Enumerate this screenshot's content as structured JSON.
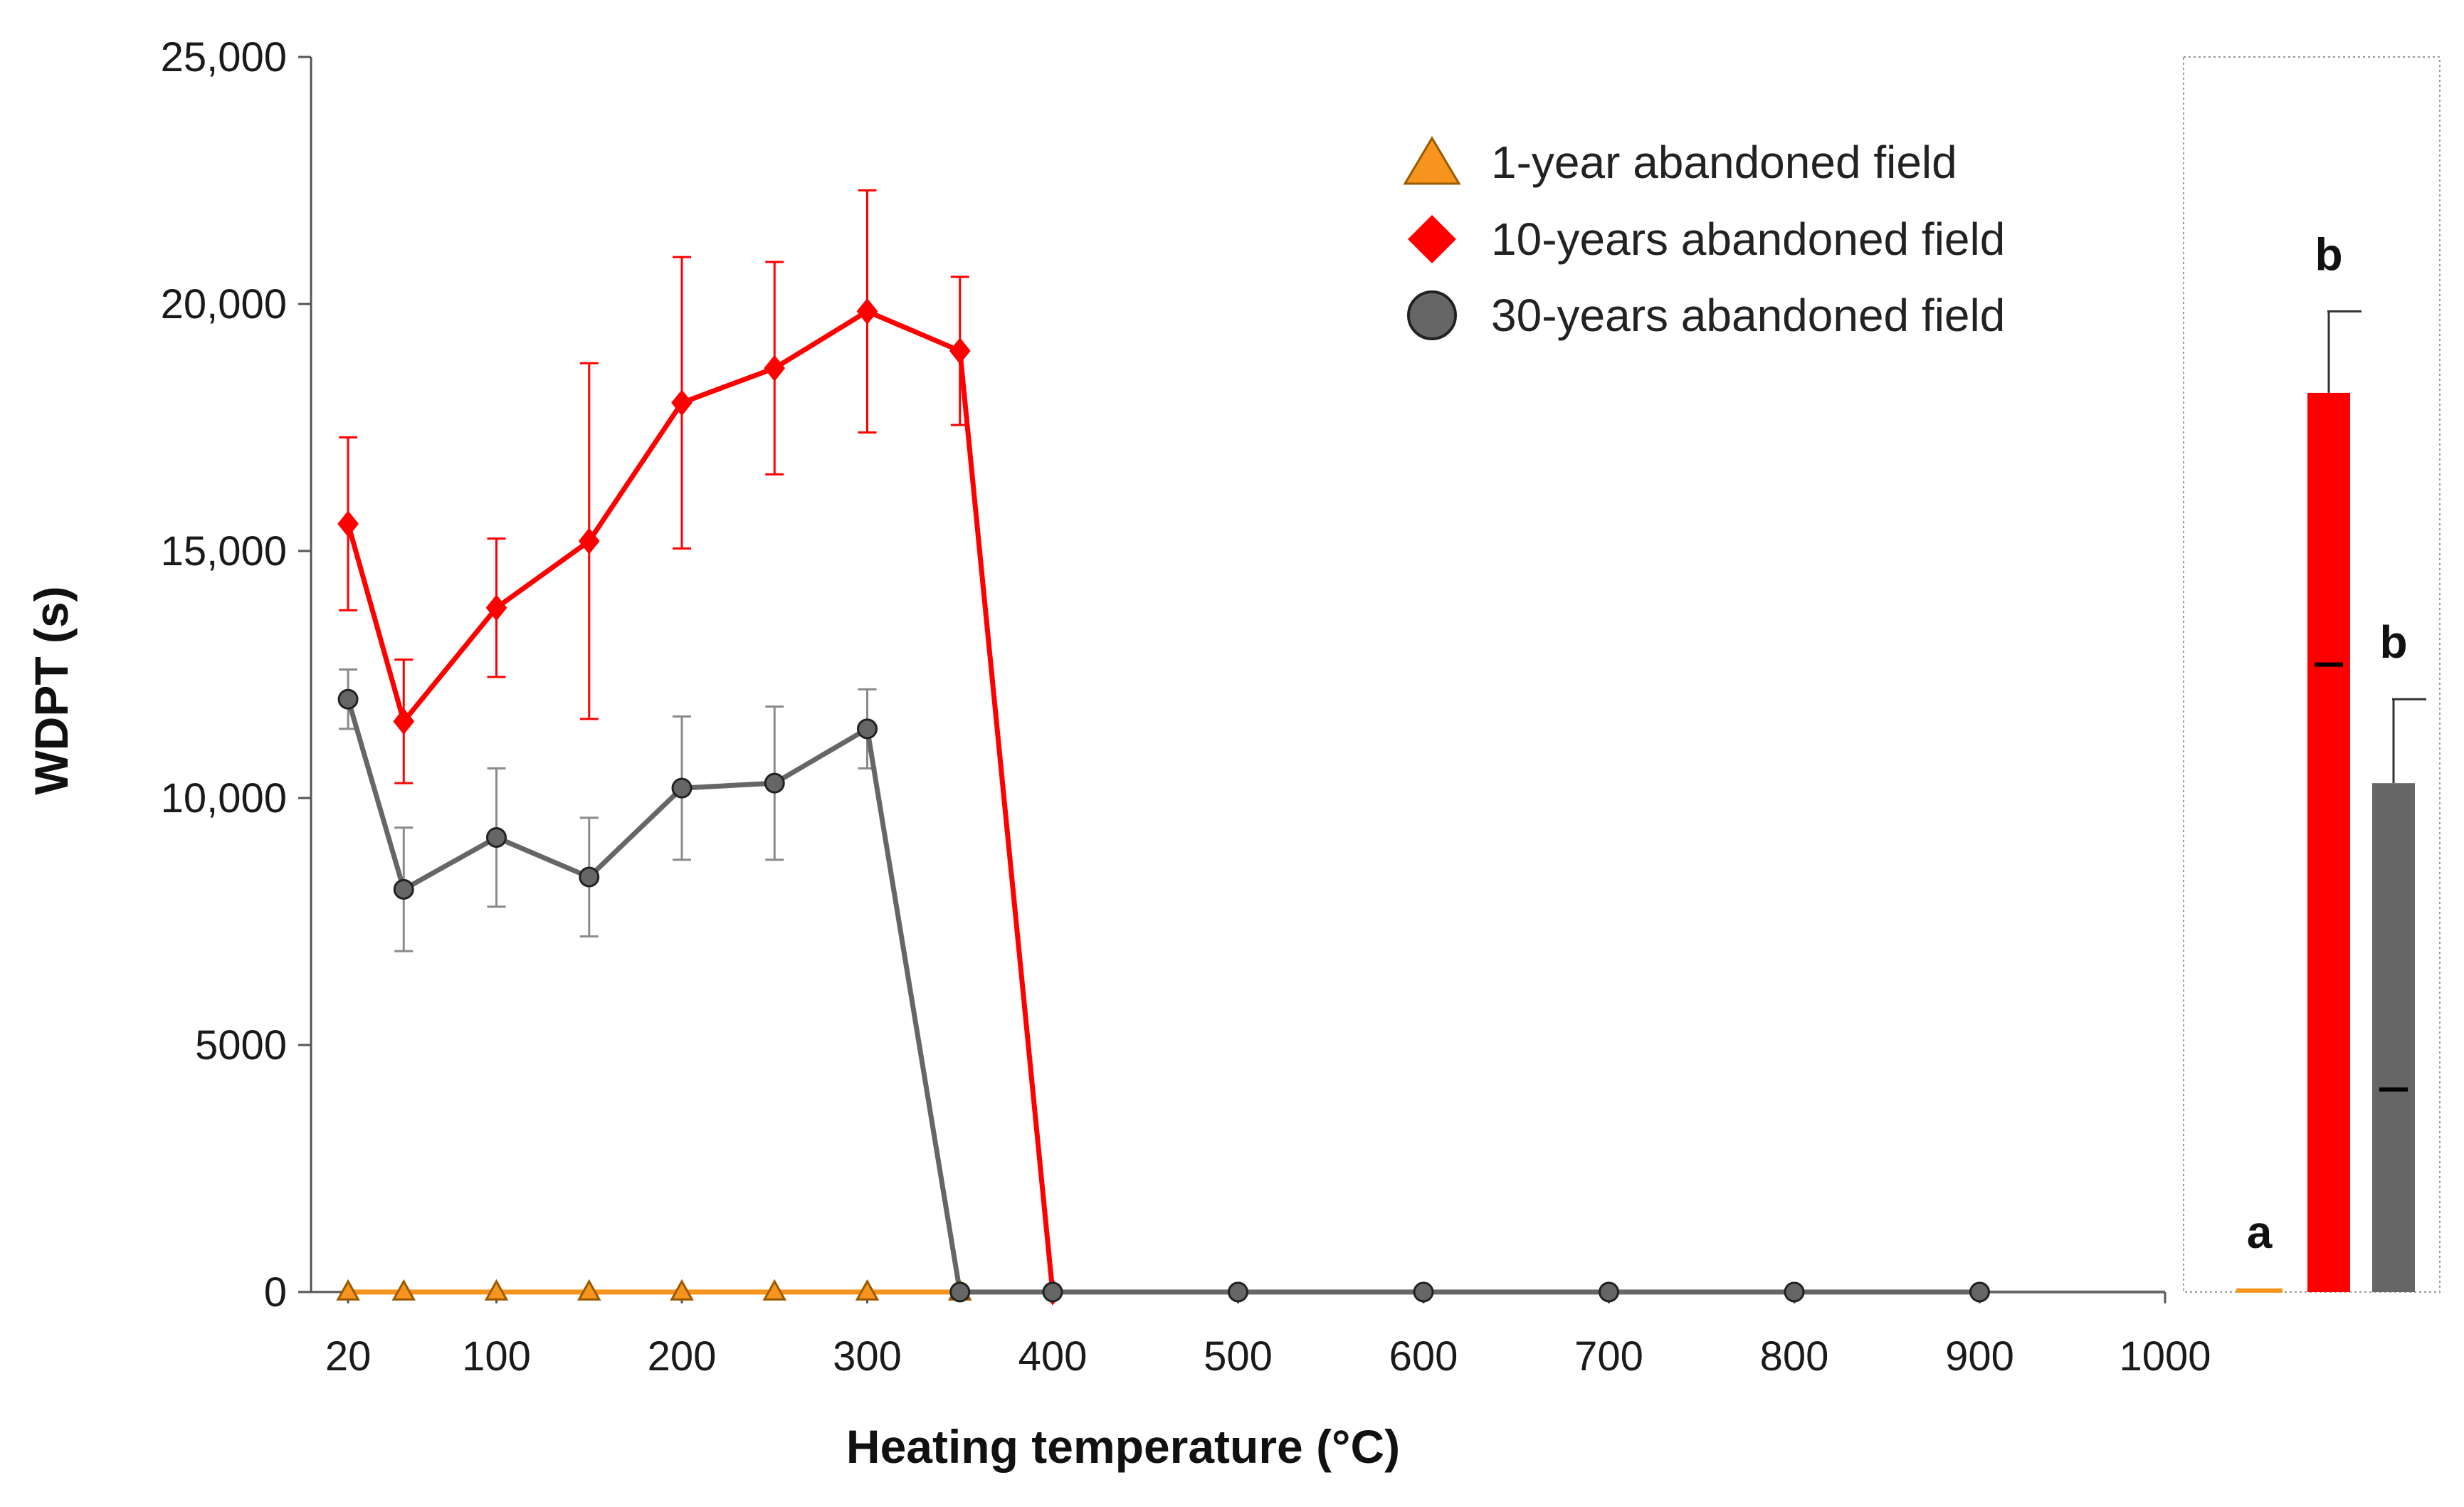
{
  "chart_data": [
    {
      "type": "line",
      "title": "",
      "xlabel": "Heating temperature (°C)",
      "ylabel": "WDPT (s)",
      "xlim": [
        0,
        1000
      ],
      "ylim": [
        0,
        25000
      ],
      "x_ticks": [
        20,
        100,
        200,
        300,
        400,
        500,
        600,
        700,
        800,
        900,
        1000
      ],
      "x_tick_labels": [
        "20",
        "100",
        "200",
        "300",
        "400",
        "500",
        "600",
        "700",
        "800",
        "900",
        "1000"
      ],
      "y_ticks": [
        0,
        5000,
        10000,
        15000,
        20000,
        25000
      ],
      "y_tick_labels": [
        "0",
        "5000",
        "10,000",
        "15,000",
        "20,000",
        "25,000"
      ],
      "legend_position": "top-right",
      "grid": false,
      "series": [
        {
          "name": "1-year abandoned field",
          "color": "#F7941D",
          "marker": "triangle",
          "x": [
            20,
            50,
            100,
            150,
            200,
            250,
            300,
            350
          ],
          "y": [
            0,
            0,
            0,
            0,
            0,
            0,
            0,
            0
          ],
          "err": [
            0,
            0,
            0,
            0,
            0,
            0,
            0,
            0
          ]
        },
        {
          "name": "10-years abandoned field",
          "color": "#FF0000",
          "marker": "diamond",
          "x": [
            20,
            50,
            100,
            150,
            200,
            250,
            300,
            350,
            400
          ],
          "y": [
            15550,
            11550,
            13850,
            15200,
            18000,
            18700,
            19850,
            19050,
            0
          ],
          "err": [
            1750,
            1250,
            1400,
            3600,
            2950,
            2150,
            2450,
            1500,
            0
          ]
        },
        {
          "name": "30-years abandoned field",
          "color": "#666666",
          "marker": "circle",
          "x": [
            20,
            50,
            100,
            150,
            200,
            250,
            300,
            350,
            400,
            500,
            600,
            700,
            800,
            900
          ],
          "y": [
            12000,
            8150,
            9200,
            8400,
            10200,
            10300,
            11400,
            0,
            0,
            0,
            0,
            0,
            0,
            0
          ],
          "err": [
            600,
            1250,
            1400,
            1200,
            1450,
            1550,
            800,
            0,
            0,
            0,
            0,
            0,
            0,
            0
          ]
        }
      ]
    },
    {
      "type": "bar",
      "title": "",
      "categories": [
        "1-year abandoned field",
        "10-years abandoned field",
        "30-years abandoned field"
      ],
      "values": [
        0,
        18200,
        10300
      ],
      "errors": [
        0,
        1650,
        1700
      ],
      "medians": [
        0,
        12700,
        4100
      ],
      "significance": [
        "a",
        "b",
        "b"
      ],
      "colors": [
        "#F7941D",
        "#FF0000",
        "#666666"
      ],
      "ylim": [
        0,
        25000
      ]
    }
  ]
}
